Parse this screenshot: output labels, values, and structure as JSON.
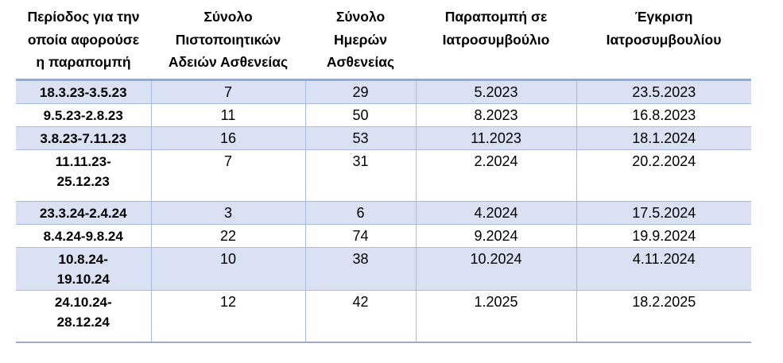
{
  "table": {
    "title": "sick-leave-medical-board-table",
    "headers": [
      "Περίοδος για την οποία αφορούσε η παραπομπή",
      "Σύνολο Πιστοποιητικών Αδειών Ασθενείας",
      "Σύνολο Ημερών Ασθενείας",
      "Παραπομπή σε Ιατροσυμβούλιο",
      "Έγκριση Ιατροσυμβουλίου"
    ],
    "rows": [
      {
        "period": "18.3.23-3.5.23",
        "certificates": "7",
        "days": "29",
        "referral": "5.2023",
        "approval": "23.5.2023"
      },
      {
        "period": "9.5.23-2.8.23",
        "certificates": "11",
        "days": "50",
        "referral": "8.2023",
        "approval": "16.8.2023"
      },
      {
        "period": "3.8.23-7.11.23",
        "certificates": "16",
        "days": "53",
        "referral": "11.2023",
        "approval": "18.1.2024"
      },
      {
        "period": "11.11.23-\n25.12.23",
        "certificates": "7",
        "days": "31",
        "referral": "2.2024",
        "approval": "20.2.2024"
      },
      {
        "period": "23.3.24-2.4.24",
        "certificates": "3",
        "days": "6",
        "referral": "4.2024",
        "approval": "17.5.2024"
      },
      {
        "period": "8.4.24-9.8.24",
        "certificates": "22",
        "days": "74",
        "referral": "9.2024",
        "approval": "19.9.2024"
      },
      {
        "period": "10.8.24-\n19.10.24",
        "certificates": "10",
        "days": "38",
        "referral": "10.2024",
        "approval": "4.11.2024"
      },
      {
        "period": "24.10.24-\n28.12.24",
        "certificates": "12",
        "days": "42",
        "referral": "1.2025",
        "approval": "18.2.2025"
      }
    ]
  },
  "colors": {
    "band_fill": "#D9E1F2",
    "grid_line": "#A7BADF",
    "header_rule": "#8FAADC",
    "bottom_rule": "#9FABC4",
    "text": "#000000"
  }
}
